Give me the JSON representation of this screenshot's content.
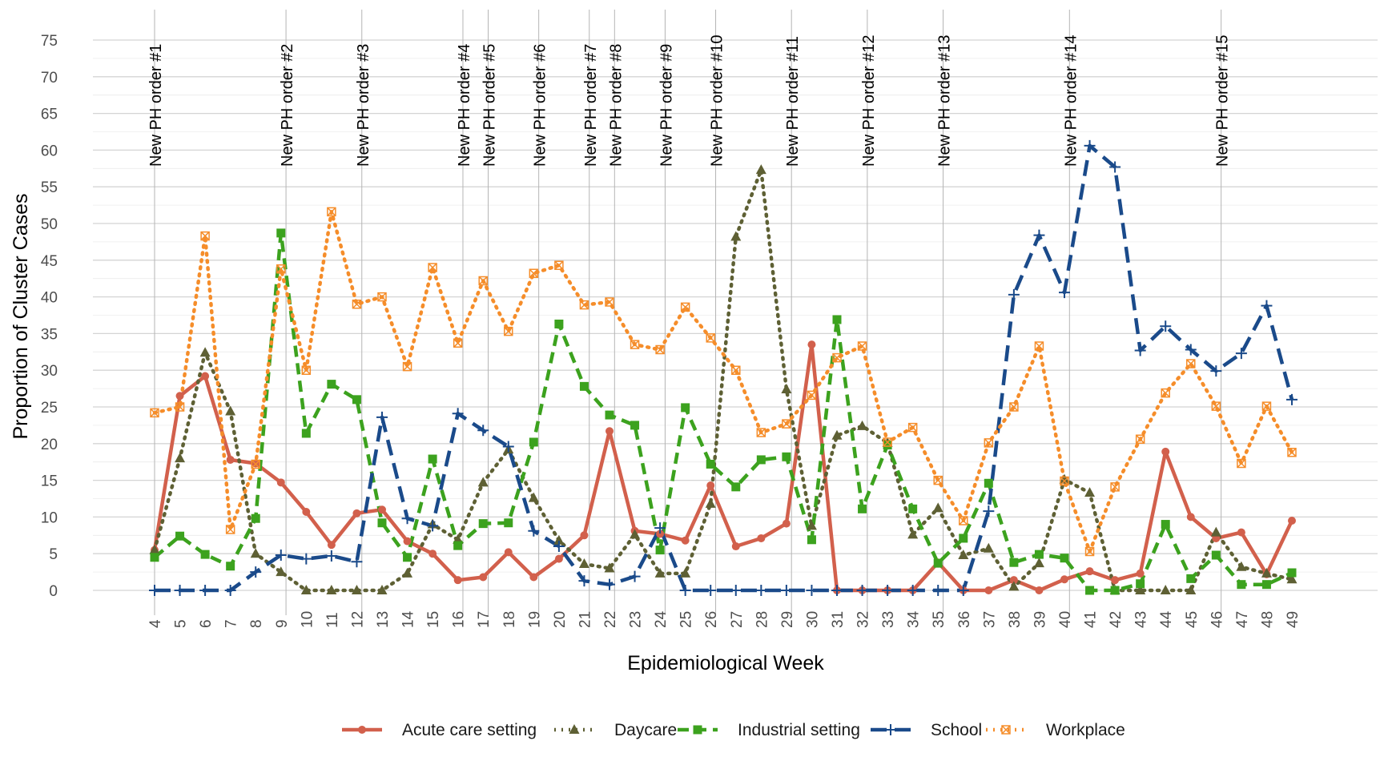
{
  "chart_data": {
    "type": "line",
    "title": "",
    "xlabel": "Epidemiological Week",
    "ylabel": "Proportion of Cluster Cases",
    "ylim": [
      -4,
      78
    ],
    "yticks": [
      0,
      5,
      10,
      15,
      20,
      25,
      30,
      35,
      40,
      45,
      50,
      55,
      60,
      65,
      70,
      75
    ],
    "x": [
      4,
      5,
      6,
      7,
      8,
      9,
      10,
      11,
      12,
      13,
      14,
      15,
      16,
      17,
      18,
      19,
      20,
      21,
      22,
      23,
      24,
      25,
      26,
      27,
      28,
      29,
      30,
      31,
      32,
      33,
      34,
      35,
      36,
      37,
      38,
      39,
      40,
      41,
      42,
      43,
      44,
      45,
      46,
      47,
      48,
      49
    ],
    "grid": true,
    "legend_position": "bottom",
    "vlines": [
      {
        "week": 4,
        "label": "New PH order #1"
      },
      {
        "week": 9.2,
        "label": "New PH order #2"
      },
      {
        "week": 12.2,
        "label": "New PH order #3"
      },
      {
        "week": 16.2,
        "label": "New PH order #4"
      },
      {
        "week": 17.2,
        "label": "New PH order #5"
      },
      {
        "week": 19.2,
        "label": "New PH order #6"
      },
      {
        "week": 21.2,
        "label": "New PH order #7"
      },
      {
        "week": 22.2,
        "label": "New PH order #8"
      },
      {
        "week": 24.2,
        "label": "New PH order #9"
      },
      {
        "week": 26.2,
        "label": "New PH order #10"
      },
      {
        "week": 29.2,
        "label": "New PH order #11"
      },
      {
        "week": 32.2,
        "label": "New PH order #12"
      },
      {
        "week": 35.2,
        "label": "New PH order #13"
      },
      {
        "week": 40.2,
        "label": "New PH order #14"
      },
      {
        "week": 46.2,
        "label": "New PH order #15"
      }
    ],
    "series": [
      {
        "name": "Acute care setting",
        "color": "#d2604c",
        "dash": "solid",
        "marker": "circle",
        "values": [
          5.5,
          26.5,
          29.2,
          17.8,
          17.3,
          14.7,
          10.7,
          6.2,
          10.5,
          11,
          6.7,
          5,
          1.4,
          1.8,
          5.2,
          1.8,
          4.3,
          7.5,
          21.7,
          8.1,
          7.7,
          6.8,
          14.3,
          6,
          7.1,
          9.1,
          33.5,
          0,
          0,
          0,
          0,
          3.8,
          0,
          0,
          1.4,
          0,
          1.5,
          2.6,
          1.4,
          2.3,
          18.9,
          10,
          7.1,
          7.9,
          2.2,
          9.5
        ]
      },
      {
        "name": "Daycare",
        "color": "#5e6034",
        "dash": "dotted",
        "marker": "triangle",
        "values": [
          5.5,
          18,
          32.4,
          24.4,
          5,
          2.5,
          0,
          0,
          0,
          0,
          2.3,
          9,
          6.9,
          14.7,
          19.2,
          12.6,
          6.8,
          3.6,
          3,
          7.6,
          2.3,
          2.3,
          11.8,
          48.2,
          57.3,
          27.4,
          8.8,
          21.1,
          22.4,
          20.1,
          7.6,
          11.2,
          4.8,
          5.7,
          0.5,
          3.7,
          15.1,
          13.3,
          0,
          0,
          0,
          0,
          7.9,
          3.2,
          2.3,
          1.5
        ]
      },
      {
        "name": "Industrial setting",
        "color": "#3ca21e",
        "dash": "dashed",
        "marker": "square",
        "values": [
          4.5,
          7.4,
          4.9,
          3.3,
          9.8,
          48.7,
          21.4,
          28.1,
          26,
          9.2,
          4.5,
          17.9,
          6.1,
          9.1,
          9.2,
          20.2,
          36.3,
          27.8,
          23.9,
          22.5,
          5.5,
          24.9,
          17.2,
          14.1,
          17.8,
          18.2,
          6.9,
          36.9,
          11.1,
          19.8,
          11.1,
          3.7,
          7.1,
          14.6,
          3.8,
          4.9,
          4.4,
          0,
          0,
          0.9,
          9,
          1.6,
          4.8,
          0.8,
          0.8,
          2.4
        ]
      },
      {
        "name": "School",
        "color": "#1a4a8a",
        "dash": "longdash",
        "marker": "cross",
        "values": [
          0,
          0,
          0,
          0,
          2.5,
          4.8,
          4.3,
          4.7,
          3.9,
          23.6,
          9.8,
          8.8,
          24.1,
          21.8,
          19.6,
          8.1,
          6,
          1.3,
          0.8,
          1.9,
          8.5,
          0,
          0,
          0,
          0,
          0,
          0,
          0,
          0,
          0,
          0,
          0,
          0,
          10.8,
          40.3,
          48.4,
          40.6,
          60.6,
          57.7,
          32.7,
          36,
          32.8,
          29.9,
          32.3,
          38.8,
          26
        ]
      },
      {
        "name": "Workplace",
        "color": "#f58d2a",
        "dash": "dotted",
        "marker": "boxx",
        "values": [
          24.2,
          25,
          48.3,
          8.3,
          17.2,
          43.8,
          30,
          51.6,
          39,
          40,
          30.5,
          44,
          33.7,
          42.2,
          35.3,
          43.2,
          44.3,
          38.9,
          39.3,
          33.5,
          32.8,
          38.6,
          34.4,
          30,
          21.5,
          22.7,
          26.6,
          31.7,
          33.3,
          20.2,
          22.2,
          15,
          9.5,
          20.1,
          25,
          33.3,
          14.9,
          5.3,
          14.1,
          20.6,
          26.9,
          30.9,
          25.1,
          17.3,
          25.1,
          18.8
        ]
      }
    ]
  }
}
